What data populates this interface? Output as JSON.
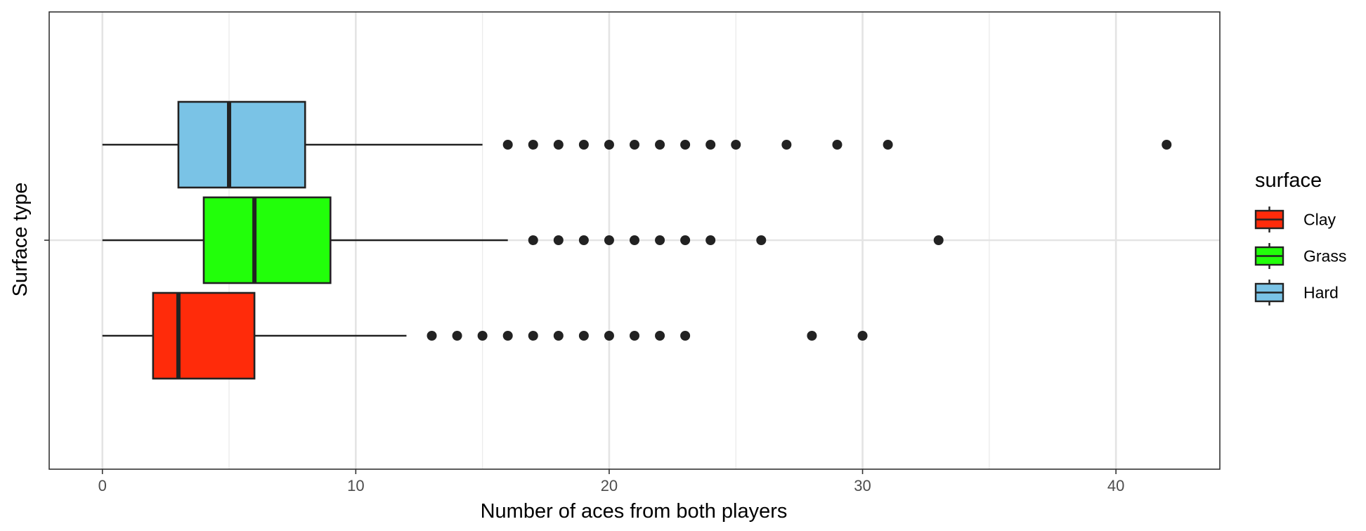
{
  "chart_data": {
    "type": "boxplot",
    "orientation": "horizontal",
    "xlabel": "Number of aces from both players",
    "ylabel": "Surface type",
    "xlim": [
      -2.1,
      44.1
    ],
    "x_ticks": [
      0,
      10,
      20,
      30,
      40
    ],
    "grid": true,
    "legend": {
      "title": "surface",
      "position": "right"
    },
    "series": [
      {
        "name": "Clay",
        "color": "#ff2b0a",
        "min": 0,
        "q1": 2,
        "median": 3,
        "q3": 6,
        "max": 12,
        "outliers": [
          13,
          14,
          15,
          16,
          17,
          18,
          19,
          20,
          21,
          22,
          23,
          28,
          30
        ]
      },
      {
        "name": "Grass",
        "color": "#22ff0a",
        "min": 0,
        "q1": 4,
        "median": 6,
        "q3": 9,
        "max": 16,
        "outliers": [
          17,
          18,
          19,
          20,
          21,
          22,
          23,
          24,
          26,
          33
        ]
      },
      {
        "name": "Hard",
        "color": "#7ac3e6",
        "min": 0,
        "q1": 3,
        "median": 5,
        "q3": 8,
        "max": 15,
        "outliers": [
          16,
          17,
          18,
          19,
          20,
          21,
          22,
          23,
          24,
          25,
          27,
          29,
          31,
          42
        ]
      }
    ]
  }
}
